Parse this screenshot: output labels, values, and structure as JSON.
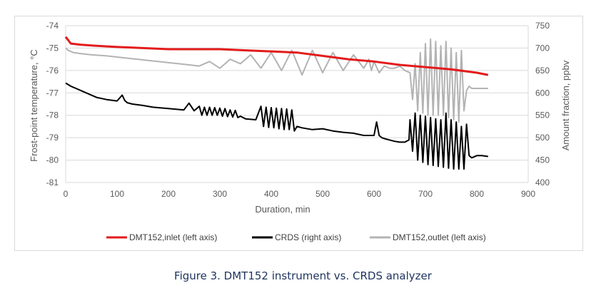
{
  "caption": "Figure 3. DMT152 instrument vs. CRDS analyzer",
  "colors": {
    "inlet": "#e31b1b",
    "crds": "#000000",
    "outlet": "#b3b3b3",
    "grid": "#d9d9d9",
    "text": "#595959"
  },
  "chart_data": {
    "type": "line",
    "title": "",
    "xlabel": "Duration, min",
    "ylabel_left": "Frost-point temperature, °C",
    "ylabel_right": "Amount fraction, ppbv",
    "xlim": [
      0,
      900
    ],
    "ylim_left": [
      -81,
      -74
    ],
    "ylim_right": [
      400,
      750
    ],
    "xticks": [
      "0",
      "100",
      "200",
      "300",
      "400",
      "500",
      "600",
      "700",
      "800",
      "900"
    ],
    "yticks_left": [
      "-74",
      "-75",
      "-76",
      "-77",
      "-78",
      "-79",
      "-80",
      "-81"
    ],
    "yticks_right": [
      "750",
      "700",
      "650",
      "600",
      "550",
      "500",
      "450",
      "400"
    ],
    "grid": "horizontal",
    "legend_position": "bottom",
    "series": [
      {
        "name": "DMT152,inlet (left axis)",
        "axis": "left",
        "color": "#e31b1b",
        "x": [
          0,
          10,
          30,
          60,
          100,
          150,
          200,
          250,
          300,
          350,
          400,
          450,
          500,
          550,
          600,
          650,
          700,
          750,
          800,
          822
        ],
        "y": [
          -74.5,
          -74.8,
          -74.85,
          -74.9,
          -74.95,
          -75.0,
          -75.05,
          -75.05,
          -75.05,
          -75.1,
          -75.15,
          -75.2,
          -75.35,
          -75.5,
          -75.6,
          -75.75,
          -75.85,
          -75.95,
          -76.1,
          -76.2
        ]
      },
      {
        "name": "CRDS (right axis)",
        "axis": "right",
        "color": "#000000",
        "x": [
          0,
          10,
          20,
          40,
          60,
          80,
          100,
          110,
          115,
          120,
          130,
          150,
          170,
          200,
          230,
          240,
          250,
          260,
          265,
          270,
          275,
          280,
          285,
          290,
          295,
          300,
          305,
          310,
          315,
          320,
          325,
          330,
          335,
          340,
          350,
          370,
          380,
          385,
          390,
          395,
          400,
          405,
          410,
          415,
          420,
          425,
          430,
          435,
          440,
          445,
          450,
          460,
          480,
          500,
          520,
          540,
          560,
          580,
          600,
          605,
          610,
          615,
          620,
          630,
          640,
          650,
          660,
          668,
          670,
          675,
          680,
          685,
          690,
          695,
          700,
          705,
          710,
          715,
          720,
          725,
          730,
          735,
          740,
          745,
          750,
          755,
          760,
          765,
          770,
          775,
          780,
          785,
          790,
          800,
          810,
          822
        ],
        "y": [
          622,
          615,
          610,
          600,
          590,
          585,
          582,
          595,
          583,
          578,
          575,
          572,
          568,
          565,
          562,
          577,
          560,
          570,
          550,
          568,
          550,
          568,
          550,
          567,
          550,
          566,
          548,
          565,
          547,
          562,
          546,
          561,
          545,
          548,
          542,
          540,
          570,
          525,
          568,
          523,
          567,
          522,
          566,
          520,
          565,
          518,
          564,
          518,
          562,
          515,
          525,
          522,
          518,
          520,
          515,
          512,
          510,
          505,
          505,
          535,
          505,
          500,
          498,
          495,
          492,
          490,
          490,
          495,
          540,
          470,
          555,
          450,
          550,
          445,
          548,
          440,
          545,
          438,
          542,
          436,
          540,
          434,
          555,
          432,
          540,
          430,
          535,
          430,
          525,
          430,
          530,
          460,
          455,
          460,
          460,
          458
        ]
      },
      {
        "name": "DMT152,outlet (left axis)",
        "axis": "left",
        "color": "#b3b3b3",
        "x": [
          0,
          5,
          15,
          30,
          50,
          80,
          100,
          120,
          140,
          160,
          180,
          200,
          220,
          240,
          260,
          280,
          300,
          320,
          340,
          360,
          380,
          400,
          420,
          440,
          460,
          480,
          500,
          520,
          540,
          560,
          580,
          590,
          595,
          600,
          610,
          620,
          630,
          640,
          650,
          660,
          670,
          675,
          680,
          685,
          690,
          695,
          700,
          705,
          710,
          715,
          720,
          725,
          730,
          735,
          740,
          745,
          750,
          755,
          760,
          765,
          770,
          775,
          780,
          785,
          790,
          800,
          810,
          822
        ],
        "y": [
          -75.0,
          -75.1,
          -75.2,
          -75.25,
          -75.3,
          -75.35,
          -75.4,
          -75.45,
          -75.5,
          -75.55,
          -75.6,
          -75.65,
          -75.7,
          -75.75,
          -75.8,
          -75.6,
          -75.9,
          -75.5,
          -75.7,
          -75.3,
          -75.9,
          -75.2,
          -76.0,
          -75.1,
          -76.2,
          -75.1,
          -76.1,
          -75.2,
          -76.0,
          -75.3,
          -75.9,
          -75.5,
          -76.0,
          -75.6,
          -76.1,
          -75.8,
          -75.9,
          -75.9,
          -75.8,
          -76.0,
          -76.1,
          -77.3,
          -75.7,
          -77.8,
          -75.2,
          -77.9,
          -74.8,
          -78.0,
          -74.6,
          -78.0,
          -74.7,
          -78.0,
          -74.9,
          -78.0,
          -74.7,
          -78.1,
          -75.0,
          -78.2,
          -75.2,
          -78.3,
          -75.1,
          -77.8,
          -76.9,
          -76.7,
          -76.8,
          -76.8,
          -76.8,
          -76.8
        ]
      }
    ]
  }
}
